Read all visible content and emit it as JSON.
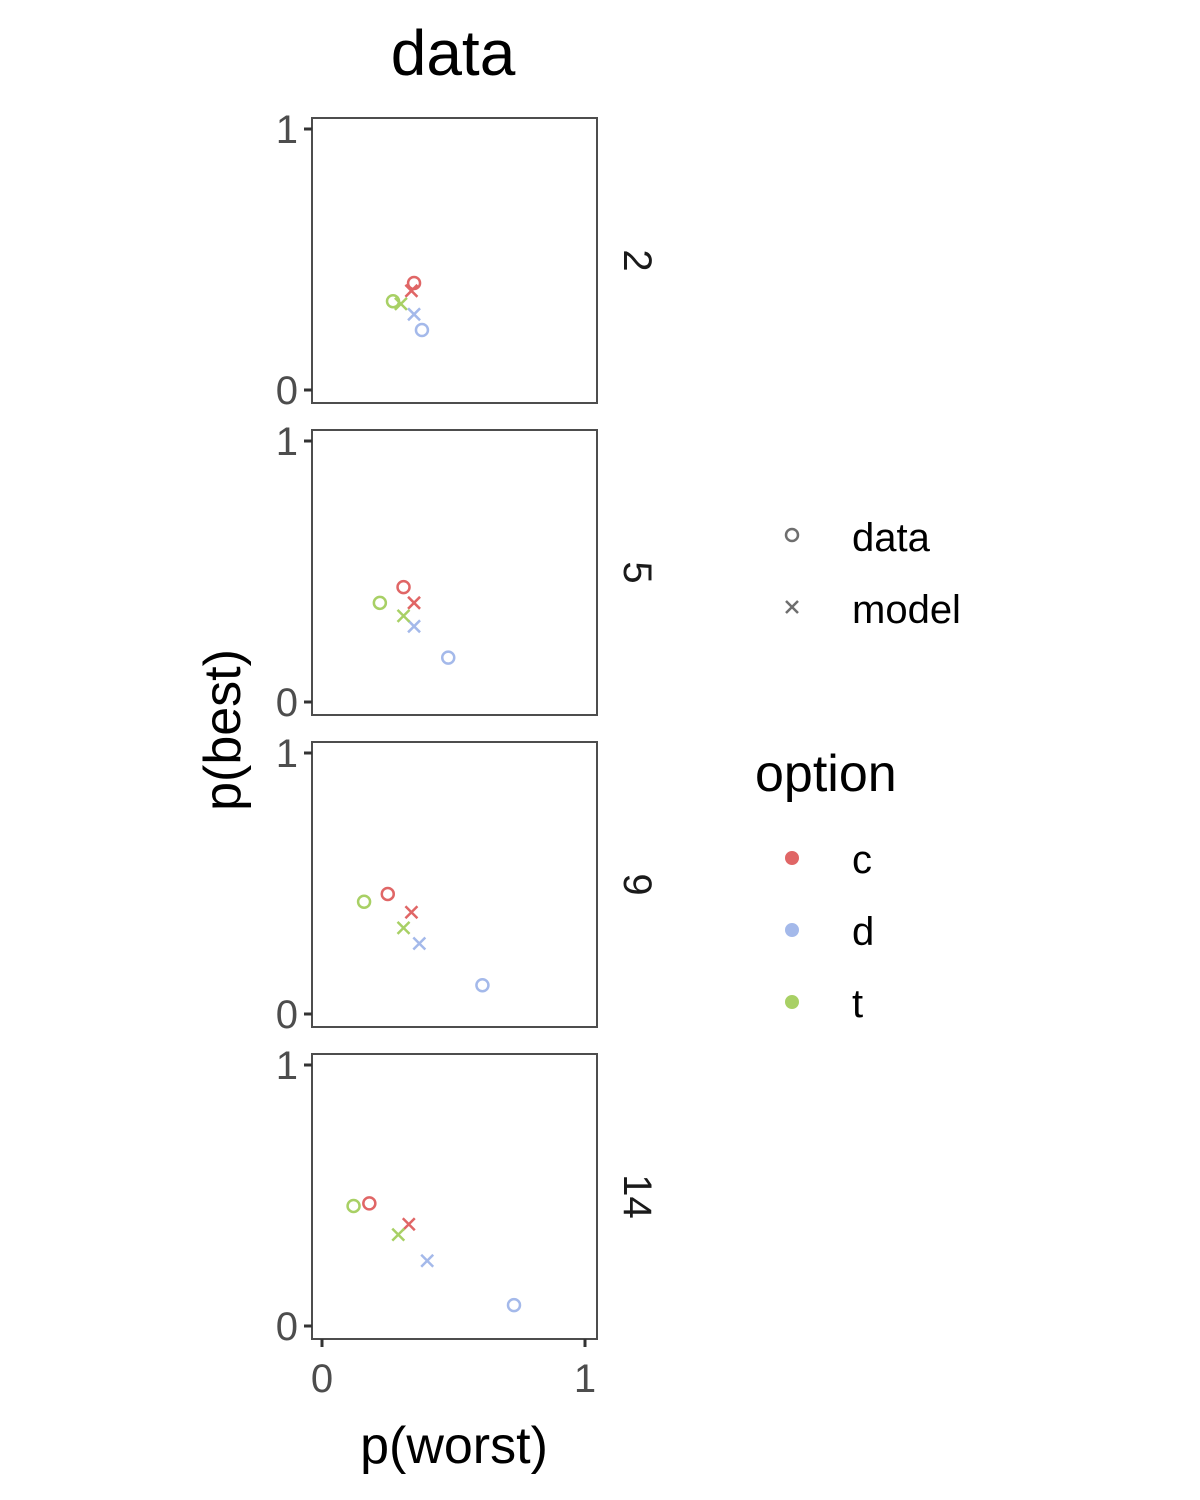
{
  "chart_data": {
    "type": "scatter",
    "title": "data",
    "xlabel": "p(worst)",
    "ylabel": "p(best)",
    "xlim": [
      0,
      1
    ],
    "ylim": [
      0,
      1
    ],
    "x_ticks": [
      "0",
      "1"
    ],
    "y_ticks": [
      "0",
      "1"
    ],
    "grid": false,
    "legend_position": "right",
    "shape_legend": {
      "items": [
        {
          "label": "data",
          "shape": "circle"
        },
        {
          "label": "model",
          "shape": "cross"
        }
      ]
    },
    "color_legend": {
      "title": "option",
      "items": [
        {
          "label": "c",
          "color": "#e06666"
        },
        {
          "label": "d",
          "color": "#a4b9ea"
        },
        {
          "label": "t",
          "color": "#a8d065"
        }
      ]
    },
    "panels": [
      {
        "facet": "2",
        "points": [
          {
            "option": "c",
            "source": "data",
            "x": 0.35,
            "y": 0.41
          },
          {
            "option": "d",
            "source": "data",
            "x": 0.38,
            "y": 0.23
          },
          {
            "option": "t",
            "source": "data",
            "x": 0.27,
            "y": 0.34
          },
          {
            "option": "c",
            "source": "model",
            "x": 0.34,
            "y": 0.38
          },
          {
            "option": "d",
            "source": "model",
            "x": 0.35,
            "y": 0.29
          },
          {
            "option": "t",
            "source": "model",
            "x": 0.3,
            "y": 0.33
          }
        ]
      },
      {
        "facet": "5",
        "points": [
          {
            "option": "c",
            "source": "data",
            "x": 0.31,
            "y": 0.44
          },
          {
            "option": "d",
            "source": "data",
            "x": 0.48,
            "y": 0.17
          },
          {
            "option": "t",
            "source": "data",
            "x": 0.22,
            "y": 0.38
          },
          {
            "option": "c",
            "source": "model",
            "x": 0.35,
            "y": 0.38
          },
          {
            "option": "d",
            "source": "model",
            "x": 0.35,
            "y": 0.29
          },
          {
            "option": "t",
            "source": "model",
            "x": 0.31,
            "y": 0.33
          }
        ]
      },
      {
        "facet": "9",
        "points": [
          {
            "option": "c",
            "source": "data",
            "x": 0.25,
            "y": 0.46
          },
          {
            "option": "d",
            "source": "data",
            "x": 0.61,
            "y": 0.11
          },
          {
            "option": "t",
            "source": "data",
            "x": 0.16,
            "y": 0.43
          },
          {
            "option": "c",
            "source": "model",
            "x": 0.34,
            "y": 0.39
          },
          {
            "option": "d",
            "source": "model",
            "x": 0.37,
            "y": 0.27
          },
          {
            "option": "t",
            "source": "model",
            "x": 0.31,
            "y": 0.33
          }
        ]
      },
      {
        "facet": "14",
        "points": [
          {
            "option": "c",
            "source": "data",
            "x": 0.18,
            "y": 0.47
          },
          {
            "option": "d",
            "source": "data",
            "x": 0.73,
            "y": 0.08
          },
          {
            "option": "t",
            "source": "data",
            "x": 0.12,
            "y": 0.46
          },
          {
            "option": "c",
            "source": "model",
            "x": 0.33,
            "y": 0.39
          },
          {
            "option": "d",
            "source": "model",
            "x": 0.4,
            "y": 0.25
          },
          {
            "option": "t",
            "source": "model",
            "x": 0.29,
            "y": 0.35
          }
        ]
      }
    ]
  }
}
